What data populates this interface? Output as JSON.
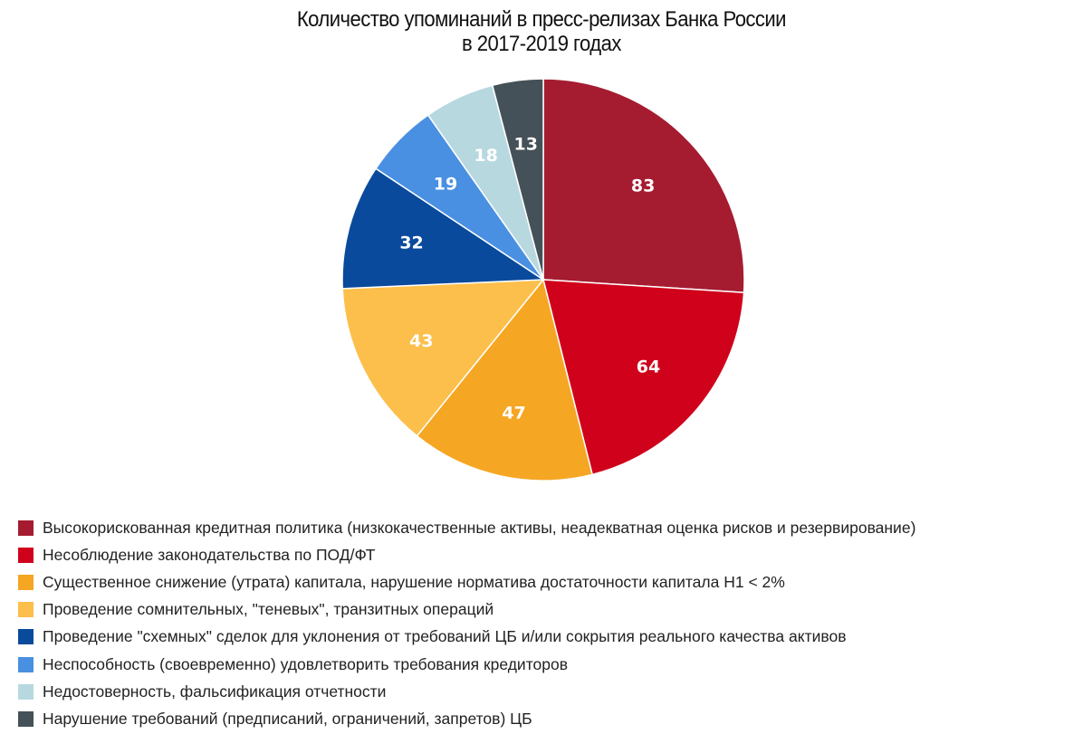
{
  "chart_data": {
    "type": "pie",
    "title_lines": [
      "Количество упоминаний в пресс-релизах Банка России",
      "в 2017-2019 годах"
    ],
    "slices": [
      {
        "label": "Высокорискованная кредитная политика (низкокачественные активы, неадекватная оценка рисков и резервирование)",
        "value": 83,
        "color": "#a51c30"
      },
      {
        "label": "Несоблюдение законодательства по ПОД/ФТ",
        "value": 64,
        "color": "#d0021b"
      },
      {
        "label": "Существенное снижение (утрата) капитала, нарушение норматива достаточности капитала Н1 < 2%",
        "value": 47,
        "color": "#f5a623"
      },
      {
        "label": "Проведение сомнительных, \"теневых\", транзитных операций",
        "value": 43,
        "color": "#fcbf4b"
      },
      {
        "label": "Проведение \"схемных\" сделок для уклонения от требований ЦБ и/или сокрытия реального качества активов",
        "value": 32,
        "color": "#0a4a9c"
      },
      {
        "label": "Неспособность (своевременно) удовлетворить требования кредиторов",
        "value": 19,
        "color": "#4a90e2"
      },
      {
        "label": "Недостоверность, фальсификация отчетности",
        "value": 18,
        "color": "#b8d8e0"
      },
      {
        "label": "Нарушение требований (предписаний, ограничений, запретов) ЦБ",
        "value": 13,
        "color": "#455158"
      }
    ],
    "start": "12 o'clock",
    "direction": "clockwise",
    "legend_placement": "bottom-left"
  }
}
